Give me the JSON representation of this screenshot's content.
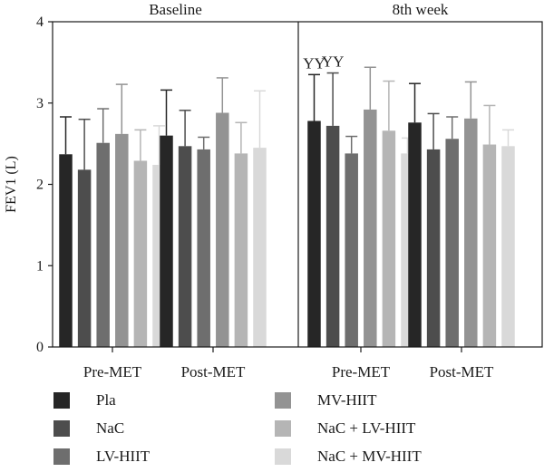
{
  "chart_data": {
    "type": "bar",
    "panels": [
      {
        "title": "Baseline",
        "groups": [
          {
            "label": "Pre-MET",
            "values": [
              2.37,
              2.18,
              2.51,
              2.62,
              2.29,
              2.24
            ],
            "errors": [
              0.46,
              0.62,
              0.42,
              0.61,
              0.38,
              0.48
            ],
            "annotations": [
              "",
              "",
              "",
              "",
              "",
              ""
            ]
          },
          {
            "label": "Post-MET",
            "values": [
              2.6,
              2.47,
              2.43,
              2.88,
              2.38,
              2.45
            ],
            "errors": [
              0.56,
              0.44,
              0.15,
              0.43,
              0.38,
              0.7
            ],
            "annotations": [
              "",
              "",
              "",
              "",
              "",
              ""
            ]
          }
        ]
      },
      {
        "title": "8th week",
        "groups": [
          {
            "label": "Pre-MET",
            "values": [
              2.78,
              2.72,
              2.38,
              2.92,
              2.66,
              2.38
            ],
            "errors": [
              0.57,
              0.65,
              0.21,
              0.52,
              0.61,
              0.19
            ],
            "annotations": [
              "YY",
              "YY",
              "",
              "",
              "",
              ""
            ]
          },
          {
            "label": "Post-MET",
            "values": [
              2.76,
              2.43,
              2.56,
              2.81,
              2.49,
              2.47
            ],
            "errors": [
              0.48,
              0.44,
              0.27,
              0.45,
              0.48,
              0.2
            ],
            "annotations": [
              "",
              "",
              "",
              "",
              "",
              ""
            ]
          }
        ]
      }
    ],
    "series": [
      {
        "name": "Pla",
        "color": "#262626"
      },
      {
        "name": "NaC",
        "color": "#4d4d4d"
      },
      {
        "name": "LV-HIIT",
        "color": "#6e6e6e"
      },
      {
        "name": "MV-HIIT",
        "color": "#939393"
      },
      {
        "name": "NaC + LV-HIIT",
        "color": "#b5b5b5"
      },
      {
        "name": "NaC + MV-HIIT",
        "color": "#d9d9d9"
      }
    ],
    "ylabel": "FEV1 (L)",
    "ylim": [
      0,
      4
    ],
    "yticks": [
      "0",
      "1",
      "2",
      "3",
      "4"
    ],
    "grid": false,
    "legend_position": "bottom"
  }
}
